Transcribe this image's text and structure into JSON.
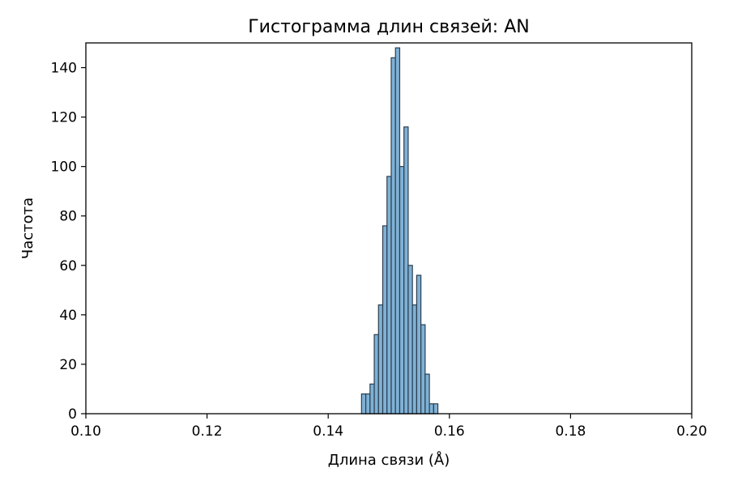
{
  "chart_data": {
    "type": "bar",
    "title": "Гистограмма длин связей: AN",
    "xlabel": "Длина связи (Å)",
    "ylabel": "Частота",
    "xlim": [
      0.1,
      0.2
    ],
    "ylim": [
      0,
      150
    ],
    "xticks": [
      0.1,
      0.12,
      0.14,
      0.16,
      0.18,
      0.2
    ],
    "xtick_labels": [
      "0.10",
      "0.12",
      "0.14",
      "0.16",
      "0.18",
      "0.20"
    ],
    "yticks": [
      0,
      20,
      40,
      60,
      80,
      100,
      120,
      140
    ],
    "ytick_labels": [
      "0",
      "20",
      "40",
      "60",
      "80",
      "100",
      "120",
      "140"
    ],
    "grid": false,
    "bar_color": "#7fb1d5",
    "edge_color": "#2c3e50",
    "bins": [
      {
        "x0": 0.1455,
        "x1": 0.1462,
        "count": 8
      },
      {
        "x0": 0.1462,
        "x1": 0.1469,
        "count": 8
      },
      {
        "x0": 0.1469,
        "x1": 0.1476,
        "count": 12
      },
      {
        "x0": 0.1476,
        "x1": 0.1483,
        "count": 32
      },
      {
        "x0": 0.1483,
        "x1": 0.149,
        "count": 44
      },
      {
        "x0": 0.149,
        "x1": 0.1497,
        "count": 76
      },
      {
        "x0": 0.1497,
        "x1": 0.1504,
        "count": 96
      },
      {
        "x0": 0.1504,
        "x1": 0.1511,
        "count": 144
      },
      {
        "x0": 0.1511,
        "x1": 0.1518,
        "count": 148
      },
      {
        "x0": 0.1518,
        "x1": 0.1525,
        "count": 100
      },
      {
        "x0": 0.1525,
        "x1": 0.1532,
        "count": 116
      },
      {
        "x0": 0.1532,
        "x1": 0.1539,
        "count": 60
      },
      {
        "x0": 0.1539,
        "x1": 0.1546,
        "count": 44
      },
      {
        "x0": 0.1546,
        "x1": 0.1553,
        "count": 56
      },
      {
        "x0": 0.1553,
        "x1": 0.156,
        "count": 36
      },
      {
        "x0": 0.156,
        "x1": 0.1567,
        "count": 16
      },
      {
        "x0": 0.1567,
        "x1": 0.1574,
        "count": 4
      },
      {
        "x0": 0.1574,
        "x1": 0.1581,
        "count": 4
      }
    ]
  }
}
